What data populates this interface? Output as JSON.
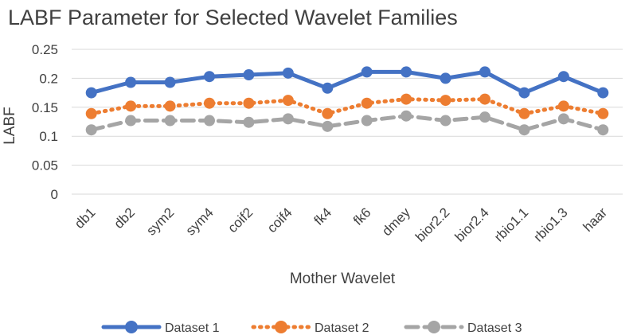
{
  "chart_data": {
    "type": "line",
    "title": "LABF Parameter for Selected Wavelet Families",
    "xlabel": "Mother Wavelet",
    "ylabel": "LABF",
    "ylim": [
      0,
      0.25
    ],
    "yticks": [
      "0",
      "0.05",
      "0.1",
      "0.15",
      "0.2",
      "0.25"
    ],
    "grid": true,
    "legend": "bottom",
    "categories": [
      "db1",
      "db2",
      "sym2",
      "sym4",
      "coif2",
      "coif4",
      "fk4",
      "fk6",
      "dmey",
      "bior2.2",
      "bior2.4",
      "rbio1.1",
      "rbio1.3",
      "haar"
    ],
    "series": [
      {
        "name": "Dataset 1",
        "color": "#4472c4",
        "style": "solid",
        "values": [
          0.175,
          0.193,
          0.193,
          0.203,
          0.206,
          0.209,
          0.183,
          0.211,
          0.211,
          0.2,
          0.211,
          0.175,
          0.203,
          0.175
        ]
      },
      {
        "name": "Dataset 2",
        "color": "#ed7d31",
        "style": "dotted",
        "values": [
          0.139,
          0.152,
          0.152,
          0.157,
          0.157,
          0.162,
          0.139,
          0.157,
          0.164,
          0.162,
          0.164,
          0.139,
          0.152,
          0.139
        ]
      },
      {
        "name": "Dataset 3",
        "color": "#a5a5a5",
        "style": "dashed",
        "values": [
          0.111,
          0.127,
          0.127,
          0.127,
          0.124,
          0.13,
          0.117,
          0.127,
          0.135,
          0.127,
          0.133,
          0.111,
          0.13,
          0.111
        ]
      }
    ]
  }
}
